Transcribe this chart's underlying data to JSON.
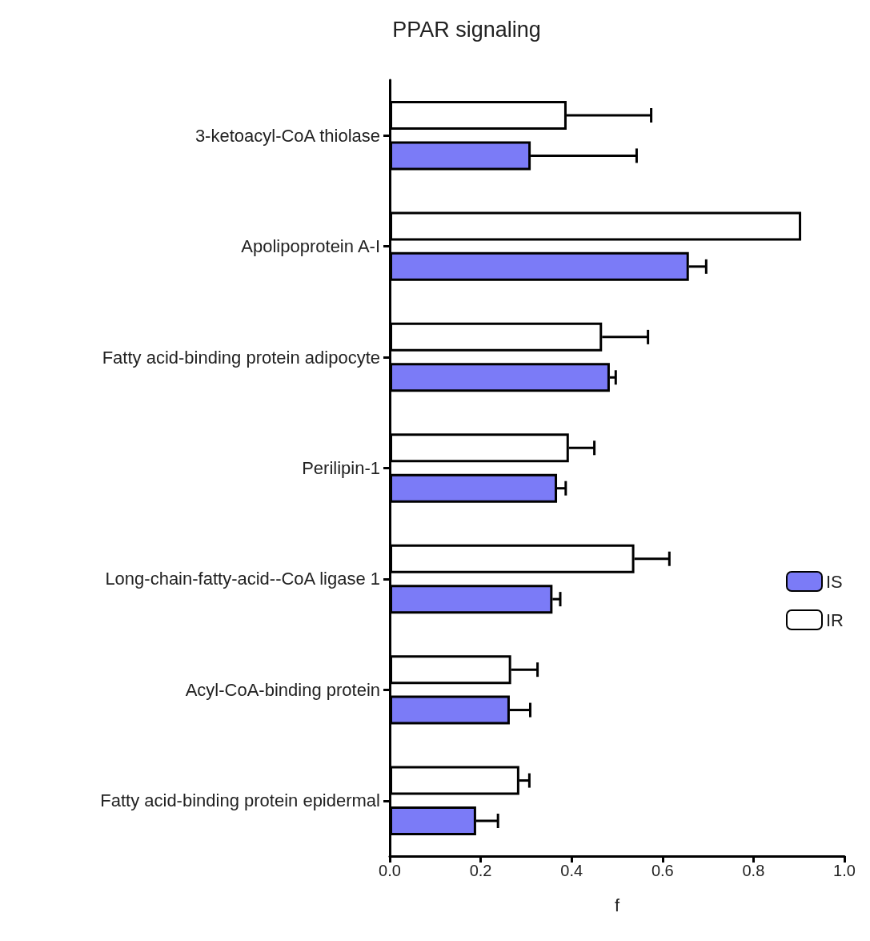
{
  "chart_data": {
    "type": "bar",
    "orientation": "horizontal",
    "title": "PPAR signaling",
    "xlabel": "f",
    "categories": [
      "3-ketoacyl-CoA thiolase",
      "Apolipoprotein A-I",
      "Fatty acid-binding protein adipocyte",
      "Perilipin-1",
      "Long-chain-fatty-acid--CoA ligase 1",
      "Acyl-CoA-binding protein",
      "Fatty acid-binding protein epidermal"
    ],
    "series": [
      {
        "name": "IS",
        "color": "#7b7bf7",
        "values": [
          0.31,
          0.658,
          0.484,
          0.368,
          0.358,
          0.264,
          0.19
        ],
        "errors": [
          [
            0.31,
            0.543
          ],
          [
            0.658,
            0.696
          ],
          [
            0.484,
            0.497
          ],
          [
            0.368,
            0.387
          ],
          [
            0.358,
            0.375
          ],
          [
            0.264,
            0.309
          ],
          [
            0.19,
            0.238
          ]
        ]
      },
      {
        "name": "IR",
        "color": "#ffffff",
        "values": [
          0.389,
          0.905,
          0.467,
          0.394,
          0.538,
          0.267,
          0.285
        ],
        "errors": [
          [
            0.389,
            0.575
          ],
          null,
          [
            0.467,
            0.568
          ],
          [
            0.394,
            0.45
          ],
          [
            0.538,
            0.615
          ],
          [
            0.267,
            0.325
          ],
          [
            0.285,
            0.307
          ]
        ]
      }
    ],
    "xlim": [
      0,
      1
    ],
    "xticks": [
      {
        "value": 0,
        "label": "0.0"
      },
      {
        "value": 0.2,
        "label": "0.2"
      },
      {
        "value": 0.4,
        "label": "0.4"
      },
      {
        "value": 0.6,
        "label": "0.6"
      },
      {
        "value": 0.8,
        "label": "0.8"
      },
      {
        "value": 1,
        "label": "1.0"
      }
    ],
    "grid": false,
    "legend": "right"
  }
}
